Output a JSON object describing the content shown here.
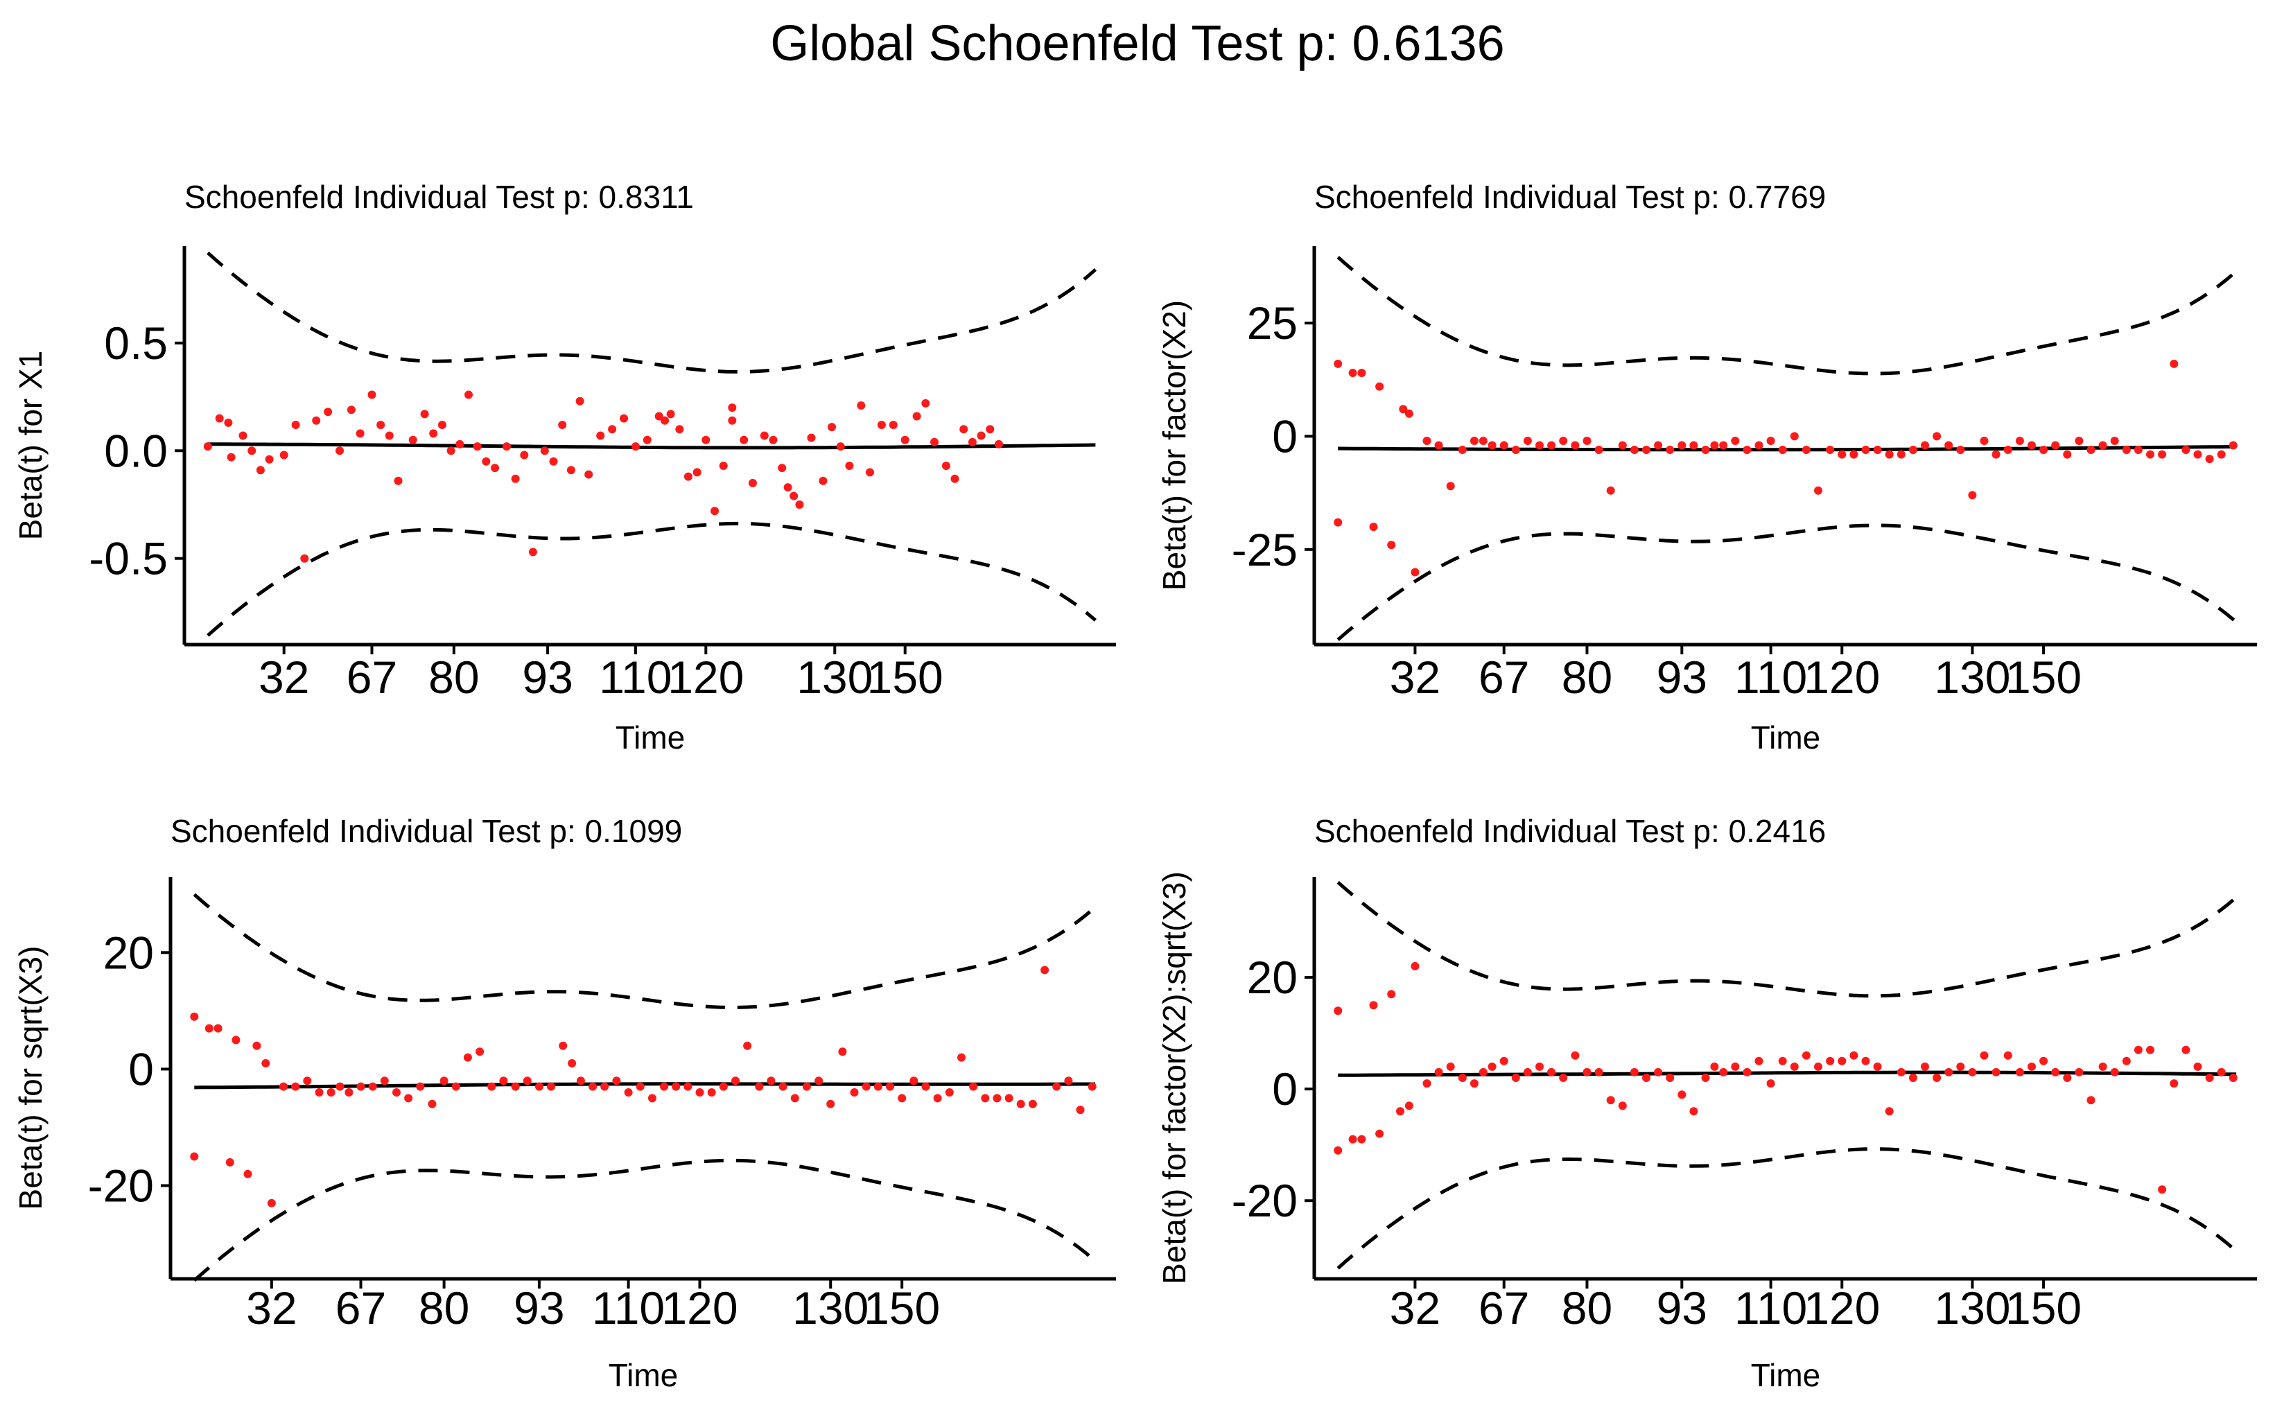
{
  "title": "Global Schoenfeld Test p: 0.6136",
  "chart_data": [
    {
      "type": "scatter",
      "title": "Schoenfeld Individual Test p: 0.8311",
      "xlabel": "Time",
      "ylabel": "Beta(t) for X1",
      "x_ticks": [
        "32",
        "67",
        "80",
        "93",
        "110",
        "120",
        "130",
        "150"
      ],
      "y_ticks": [
        -0.5,
        0.0,
        0.5
      ],
      "y_tick_labels": [
        "-0.5",
        "0.0",
        "0.5"
      ],
      "ylim": [
        -0.9,
        0.95
      ],
      "points": [
        [
          0.01,
          0.02
        ],
        [
          0.03,
          0.15
        ],
        [
          0.045,
          0.13
        ],
        [
          0.05,
          -0.03
        ],
        [
          0.07,
          0.07
        ],
        [
          0.085,
          0.0
        ],
        [
          0.1,
          -0.09
        ],
        [
          0.115,
          -0.04
        ],
        [
          0.14,
          -0.02
        ],
        [
          0.16,
          0.12
        ],
        [
          0.175,
          -0.5
        ],
        [
          0.195,
          0.14
        ],
        [
          0.215,
          0.18
        ],
        [
          0.235,
          0.0
        ],
        [
          0.255,
          0.19
        ],
        [
          0.27,
          0.08
        ],
        [
          0.29,
          0.26
        ],
        [
          0.305,
          0.12
        ],
        [
          0.32,
          0.07
        ],
        [
          0.335,
          -0.14
        ],
        [
          0.36,
          0.05
        ],
        [
          0.38,
          0.17
        ],
        [
          0.395,
          0.08
        ],
        [
          0.41,
          0.12
        ],
        [
          0.425,
          0.0
        ],
        [
          0.44,
          0.03
        ],
        [
          0.455,
          0.26
        ],
        [
          0.47,
          0.02
        ],
        [
          0.485,
          -0.05
        ],
        [
          0.5,
          -0.08
        ],
        [
          0.52,
          0.02
        ],
        [
          0.535,
          -0.13
        ],
        [
          0.55,
          -0.02
        ],
        [
          0.565,
          -0.47
        ],
        [
          0.585,
          0.0
        ],
        [
          0.6,
          -0.05
        ],
        [
          0.615,
          0.12
        ],
        [
          0.63,
          -0.09
        ],
        [
          0.645,
          0.23
        ],
        [
          0.66,
          -0.11
        ],
        [
          0.68,
          0.07
        ],
        [
          0.7,
          0.1
        ],
        [
          0.72,
          0.15
        ],
        [
          0.74,
          0.02
        ],
        [
          0.76,
          0.05
        ],
        [
          0.78,
          0.16
        ],
        [
          0.79,
          0.14
        ],
        [
          0.8,
          0.17
        ],
        [
          0.815,
          0.1
        ],
        [
          0.83,
          -0.12
        ],
        [
          0.845,
          -0.1
        ],
        [
          0.86,
          0.05
        ],
        [
          0.875,
          -0.28
        ],
        [
          0.89,
          -0.07
        ],
        [
          0.905,
          0.2
        ],
        [
          0.905,
          0.14
        ],
        [
          0.925,
          0.05
        ],
        [
          0.94,
          -0.15
        ],
        [
          0.96,
          0.07
        ],
        [
          0.975,
          0.05
        ],
        [
          0.99,
          -0.08
        ],
        [
          1.0,
          -0.17
        ],
        [
          1.01,
          -0.21
        ],
        [
          1.02,
          -0.25
        ],
        [
          1.04,
          0.06
        ],
        [
          1.06,
          -0.14
        ],
        [
          1.075,
          0.11
        ],
        [
          1.09,
          0.02
        ],
        [
          1.105,
          -0.07
        ],
        [
          1.125,
          0.21
        ],
        [
          1.14,
          -0.1
        ],
        [
          1.16,
          0.12
        ],
        [
          1.18,
          0.12
        ],
        [
          1.2,
          0.05
        ],
        [
          1.22,
          0.16
        ],
        [
          1.235,
          0.22
        ],
        [
          1.25,
          0.04
        ],
        [
          1.27,
          -0.07
        ],
        [
          1.285,
          -0.13
        ],
        [
          1.3,
          0.1
        ],
        [
          1.315,
          0.04
        ],
        [
          1.33,
          0.07
        ],
        [
          1.345,
          0.1
        ],
        [
          1.36,
          0.03
        ]
      ]
    },
    {
      "type": "scatter",
      "title": "Schoenfeld Individual Test p: 0.7769",
      "xlabel": "Time",
      "ylabel": "Beta(t) for factor(X2)",
      "x_ticks": [
        "32",
        "67",
        "80",
        "93",
        "110",
        "120",
        "130",
        "150"
      ],
      "y_ticks": [
        -25,
        0,
        25
      ],
      "y_tick_labels": [
        "-25",
        "0",
        "25"
      ],
      "ylim": [
        -46,
        42
      ],
      "points": [
        [
          0.01,
          16
        ],
        [
          0.01,
          -19
        ],
        [
          0.035,
          14
        ],
        [
          0.05,
          14
        ],
        [
          0.07,
          -20
        ],
        [
          0.08,
          11
        ],
        [
          0.1,
          -24
        ],
        [
          0.12,
          6
        ],
        [
          0.13,
          5
        ],
        [
          0.14,
          -30
        ],
        [
          0.16,
          -1
        ],
        [
          0.18,
          -2
        ],
        [
          0.2,
          -11
        ],
        [
          0.22,
          -3
        ],
        [
          0.24,
          -1
        ],
        [
          0.255,
          -1
        ],
        [
          0.27,
          -2
        ],
        [
          0.29,
          -2
        ],
        [
          0.31,
          -3
        ],
        [
          0.33,
          -1
        ],
        [
          0.35,
          -2
        ],
        [
          0.37,
          -2
        ],
        [
          0.39,
          -1
        ],
        [
          0.41,
          -2
        ],
        [
          0.43,
          -1
        ],
        [
          0.45,
          -3
        ],
        [
          0.47,
          -12
        ],
        [
          0.49,
          -2
        ],
        [
          0.51,
          -3
        ],
        [
          0.53,
          -3
        ],
        [
          0.55,
          -2
        ],
        [
          0.57,
          -3
        ],
        [
          0.59,
          -2
        ],
        [
          0.61,
          -2
        ],
        [
          0.63,
          -3
        ],
        [
          0.645,
          -2
        ],
        [
          0.66,
          -2
        ],
        [
          0.68,
          -1
        ],
        [
          0.7,
          -3
        ],
        [
          0.72,
          -2
        ],
        [
          0.74,
          -1
        ],
        [
          0.76,
          -3
        ],
        [
          0.78,
          0
        ],
        [
          0.8,
          -3
        ],
        [
          0.82,
          -12
        ],
        [
          0.84,
          -3
        ],
        [
          0.86,
          -4
        ],
        [
          0.88,
          -4
        ],
        [
          0.9,
          -3
        ],
        [
          0.92,
          -3
        ],
        [
          0.94,
          -4
        ],
        [
          0.96,
          -4
        ],
        [
          0.98,
          -3
        ],
        [
          1.0,
          -2
        ],
        [
          1.02,
          0
        ],
        [
          1.04,
          -2
        ],
        [
          1.06,
          -3
        ],
        [
          1.08,
          -13
        ],
        [
          1.1,
          -1
        ],
        [
          1.12,
          -4
        ],
        [
          1.14,
          -3
        ],
        [
          1.16,
          -1
        ],
        [
          1.18,
          -2
        ],
        [
          1.2,
          -3
        ],
        [
          1.22,
          -2
        ],
        [
          1.24,
          -4
        ],
        [
          1.26,
          -1
        ],
        [
          1.28,
          -3
        ],
        [
          1.3,
          -2
        ],
        [
          1.32,
          -1
        ],
        [
          1.34,
          -3
        ],
        [
          1.36,
          -3
        ],
        [
          1.38,
          -4
        ],
        [
          1.4,
          -4
        ],
        [
          1.42,
          16
        ],
        [
          1.44,
          -3
        ],
        [
          1.46,
          -4
        ],
        [
          1.48,
          -5
        ],
        [
          1.5,
          -4
        ],
        [
          1.52,
          -2
        ]
      ]
    },
    {
      "type": "scatter",
      "title": "Schoenfeld Individual Test p: 0.1099",
      "xlabel": "Time",
      "ylabel": "Beta(t) for sqrt(X3)",
      "x_ticks": [
        "32",
        "67",
        "80",
        "93",
        "110",
        "120",
        "130",
        "150"
      ],
      "y_ticks": [
        -20,
        0,
        20
      ],
      "y_tick_labels": [
        "-20",
        "0",
        "20"
      ],
      "ylim": [
        -36,
        33
      ],
      "points": [
        [
          0.01,
          9
        ],
        [
          0.01,
          -15
        ],
        [
          0.035,
          7
        ],
        [
          0.05,
          7
        ],
        [
          0.07,
          -16
        ],
        [
          0.08,
          5
        ],
        [
          0.1,
          -18
        ],
        [
          0.115,
          4
        ],
        [
          0.13,
          1
        ],
        [
          0.14,
          -23
        ],
        [
          0.16,
          -3
        ],
        [
          0.18,
          -3
        ],
        [
          0.2,
          -2
        ],
        [
          0.22,
          -4
        ],
        [
          0.24,
          -4
        ],
        [
          0.255,
          -3
        ],
        [
          0.27,
          -4
        ],
        [
          0.29,
          -3
        ],
        [
          0.31,
          -3
        ],
        [
          0.33,
          -2
        ],
        [
          0.35,
          -4
        ],
        [
          0.37,
          -5
        ],
        [
          0.39,
          -3
        ],
        [
          0.41,
          -6
        ],
        [
          0.43,
          -2
        ],
        [
          0.45,
          -3
        ],
        [
          0.47,
          2
        ],
        [
          0.49,
          3
        ],
        [
          0.51,
          -3
        ],
        [
          0.53,
          -2
        ],
        [
          0.55,
          -3
        ],
        [
          0.57,
          -2
        ],
        [
          0.59,
          -3
        ],
        [
          0.61,
          -3
        ],
        [
          0.63,
          4
        ],
        [
          0.645,
          1
        ],
        [
          0.66,
          -2
        ],
        [
          0.68,
          -3
        ],
        [
          0.7,
          -3
        ],
        [
          0.72,
          -2
        ],
        [
          0.74,
          -4
        ],
        [
          0.76,
          -3
        ],
        [
          0.78,
          -5
        ],
        [
          0.8,
          -3
        ],
        [
          0.82,
          -3
        ],
        [
          0.84,
          -3
        ],
        [
          0.86,
          -4
        ],
        [
          0.88,
          -4
        ],
        [
          0.9,
          -3
        ],
        [
          0.92,
          -2
        ],
        [
          0.94,
          4
        ],
        [
          0.96,
          -3
        ],
        [
          0.98,
          -2
        ],
        [
          1.0,
          -3
        ],
        [
          1.02,
          -5
        ],
        [
          1.04,
          -3
        ],
        [
          1.06,
          -2
        ],
        [
          1.08,
          -6
        ],
        [
          1.1,
          3
        ],
        [
          1.12,
          -4
        ],
        [
          1.14,
          -3
        ],
        [
          1.16,
          -3
        ],
        [
          1.18,
          -3
        ],
        [
          1.2,
          -5
        ],
        [
          1.22,
          -2
        ],
        [
          1.24,
          -3
        ],
        [
          1.26,
          -5
        ],
        [
          1.28,
          -4
        ],
        [
          1.3,
          2
        ],
        [
          1.32,
          -3
        ],
        [
          1.34,
          -5
        ],
        [
          1.36,
          -5
        ],
        [
          1.38,
          -5
        ],
        [
          1.4,
          -6
        ],
        [
          1.42,
          -6
        ],
        [
          1.44,
          17
        ],
        [
          1.46,
          -3
        ],
        [
          1.48,
          -2
        ],
        [
          1.5,
          -7
        ],
        [
          1.52,
          -3
        ]
      ]
    },
    {
      "type": "scatter",
      "title": "Schoenfeld Individual Test p: 0.2416",
      "xlabel": "Time",
      "ylabel": "Beta(t) for factor(X2):sqrt(X3)",
      "x_ticks": [
        "32",
        "67",
        "80",
        "93",
        "110",
        "120",
        "130",
        "150"
      ],
      "y_ticks": [
        -20,
        0,
        20
      ],
      "y_tick_labels": [
        "-20",
        "0",
        "20"
      ],
      "ylim": [
        -34,
        38
      ],
      "points": [
        [
          0.01,
          14
        ],
        [
          0.01,
          -11
        ],
        [
          0.035,
          -9
        ],
        [
          0.05,
          -9
        ],
        [
          0.07,
          15
        ],
        [
          0.08,
          -8
        ],
        [
          0.1,
          17
        ],
        [
          0.115,
          -4
        ],
        [
          0.13,
          -3
        ],
        [
          0.14,
          22
        ],
        [
          0.16,
          1
        ],
        [
          0.18,
          3
        ],
        [
          0.2,
          4
        ],
        [
          0.22,
          2
        ],
        [
          0.24,
          1
        ],
        [
          0.255,
          3
        ],
        [
          0.27,
          4
        ],
        [
          0.29,
          5
        ],
        [
          0.31,
          2
        ],
        [
          0.33,
          3
        ],
        [
          0.35,
          4
        ],
        [
          0.37,
          3
        ],
        [
          0.39,
          2
        ],
        [
          0.41,
          6
        ],
        [
          0.43,
          3
        ],
        [
          0.45,
          3
        ],
        [
          0.47,
          -2
        ],
        [
          0.49,
          -3
        ],
        [
          0.51,
          3
        ],
        [
          0.53,
          2
        ],
        [
          0.55,
          3
        ],
        [
          0.57,
          2
        ],
        [
          0.59,
          -1
        ],
        [
          0.61,
          -4
        ],
        [
          0.63,
          2
        ],
        [
          0.645,
          4
        ],
        [
          0.66,
          3
        ],
        [
          0.68,
          4
        ],
        [
          0.7,
          3
        ],
        [
          0.72,
          5
        ],
        [
          0.74,
          1
        ],
        [
          0.76,
          5
        ],
        [
          0.78,
          4
        ],
        [
          0.8,
          6
        ],
        [
          0.82,
          4
        ],
        [
          0.84,
          5
        ],
        [
          0.86,
          5
        ],
        [
          0.88,
          6
        ],
        [
          0.9,
          5
        ],
        [
          0.92,
          4
        ],
        [
          0.94,
          -4
        ],
        [
          0.96,
          3
        ],
        [
          0.98,
          2
        ],
        [
          1.0,
          4
        ],
        [
          1.02,
          2
        ],
        [
          1.04,
          3
        ],
        [
          1.06,
          4
        ],
        [
          1.08,
          3
        ],
        [
          1.1,
          6
        ],
        [
          1.12,
          3
        ],
        [
          1.14,
          6
        ],
        [
          1.16,
          3
        ],
        [
          1.18,
          4
        ],
        [
          1.2,
          5
        ],
        [
          1.22,
          3
        ],
        [
          1.24,
          2
        ],
        [
          1.26,
          3
        ],
        [
          1.28,
          -2
        ],
        [
          1.3,
          4
        ],
        [
          1.32,
          3
        ],
        [
          1.34,
          5
        ],
        [
          1.36,
          7
        ],
        [
          1.38,
          7
        ],
        [
          1.4,
          -18
        ],
        [
          1.42,
          1
        ],
        [
          1.44,
          7
        ],
        [
          1.46,
          4
        ],
        [
          1.48,
          2
        ],
        [
          1.5,
          3
        ],
        [
          1.52,
          2
        ]
      ]
    }
  ]
}
